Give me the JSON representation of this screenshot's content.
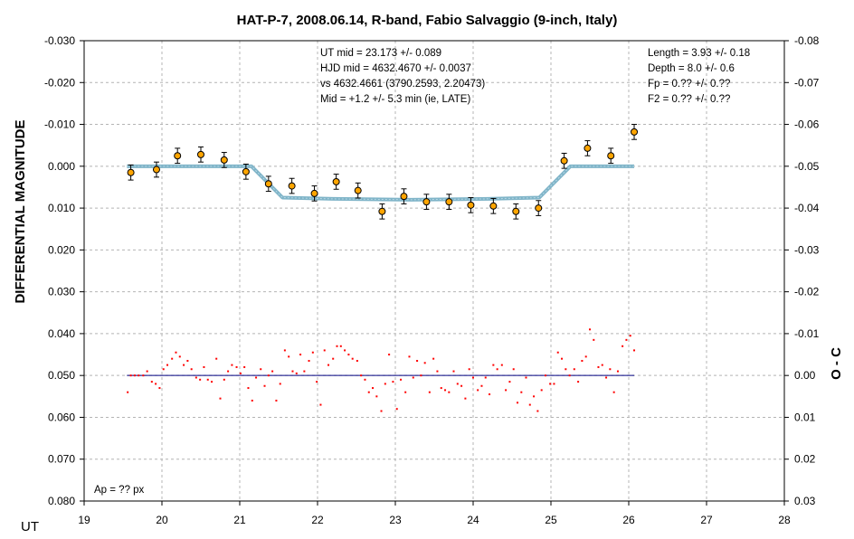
{
  "chart_data": {
    "type": "scatter",
    "title": "HAT-P-7, 2008.06.14, R-band, Fabio Salvaggio (9-inch, Italy)",
    "xlabel": "UT",
    "ylabel": "DIFFERENTIAL MAGNITUDE",
    "y2label": "O - C",
    "xlim": [
      19,
      28
    ],
    "ylim": [
      0.08,
      -0.03
    ],
    "y2lim": [
      0.03,
      -0.08
    ],
    "y_inverted": true,
    "grid": true,
    "x_ticks": [
      "19",
      "20",
      "21",
      "22",
      "23",
      "24",
      "25",
      "26",
      "27",
      "28"
    ],
    "y_ticks": [
      "-0.030",
      "-0.020",
      "-0.010",
      "0.000",
      "0.010",
      "0.020",
      "0.030",
      "0.040",
      "0.050",
      "0.060",
      "0.070",
      "0.080"
    ],
    "y2_ticks": [
      "-0.08",
      "-0.07",
      "-0.06",
      "-0.05",
      "-0.04",
      "-0.03",
      "-0.02",
      "-0.01",
      "0.00",
      "0.01",
      "0.02",
      "0.03"
    ],
    "annotations_center": [
      "UT mid = 23.173 +/- 0.089",
      "HJD mid = 4632.4670 +/- 0.0037",
      "vs 4632.4661  (3790.2593, 2.20473)",
      "Mid = +1.2 +/- 5.3 min (ie, LATE)"
    ],
    "annotations_right": [
      "Length = 3.93 +/- 0.18",
      "Depth = 8.0 +/- 0.6",
      "Fp = 0.?? +/- 0.??",
      "F2 = 0.?? +/- 0.??"
    ],
    "annotation_ap": "Ap = ?? px",
    "series": [
      {
        "type": "binned-points-with-errorbars",
        "color": "#ffa500",
        "x": [
          19.6,
          19.93,
          20.2,
          20.5,
          20.8,
          21.08,
          21.37,
          21.67,
          21.96,
          22.24,
          22.52,
          22.83,
          23.11,
          23.4,
          23.69,
          23.97,
          24.26,
          24.55,
          24.84,
          25.17,
          25.47,
          25.77,
          26.07
        ],
        "y": [
          0.0015,
          0.0008,
          -0.0025,
          -0.0028,
          -0.0015,
          0.0013,
          0.0042,
          0.0047,
          0.0065,
          0.0037,
          0.0058,
          0.0108,
          0.0072,
          0.0085,
          0.0085,
          0.0093,
          0.0095,
          0.0108,
          0.01,
          -0.0013,
          -0.0043,
          -0.0025,
          -0.0082
        ],
        "err": [
          0.0018,
          0.0018,
          0.0018,
          0.0018,
          0.0018,
          0.0018,
          0.0018,
          0.0018,
          0.0018,
          0.0018,
          0.0018,
          0.0018,
          0.0018,
          0.0018,
          0.0018,
          0.0018,
          0.0018,
          0.0018,
          0.0018,
          0.0018,
          0.0018,
          0.0018,
          0.0018
        ]
      },
      {
        "type": "model-line",
        "color": "#7fb4c8",
        "x": [
          19.55,
          21.15,
          21.55,
          22.2,
          23.2,
          24.2,
          24.85,
          25.25,
          26.07
        ],
        "y": [
          0.0,
          0.0,
          0.0075,
          0.0078,
          0.008,
          0.0078,
          0.0075,
          0.0,
          0.0
        ]
      },
      {
        "type": "residual-baseline",
        "color": "#000080",
        "axis": "right",
        "x": [
          19.55,
          26.07
        ],
        "y": [
          0.0,
          0.0
        ]
      },
      {
        "type": "residuals",
        "color": "#ff0000",
        "axis": "right",
        "x": [
          19.56,
          19.6,
          19.65,
          19.7,
          19.76,
          19.81,
          19.87,
          19.92,
          19.97,
          20.02,
          20.07,
          20.13,
          20.18,
          20.23,
          20.28,
          20.33,
          20.38,
          20.44,
          20.49,
          20.54,
          20.59,
          20.64,
          20.7,
          20.75,
          20.8,
          20.85,
          20.9,
          20.96,
          21.01,
          21.06,
          21.11,
          21.16,
          21.21,
          21.27,
          21.32,
          21.37,
          21.42,
          21.47,
          21.52,
          21.58,
          21.63,
          21.68,
          21.73,
          21.78,
          21.83,
          21.89,
          21.94,
          21.99,
          22.04,
          22.09,
          22.14,
          22.2,
          22.25,
          22.3,
          22.35,
          22.4,
          22.45,
          22.51,
          22.56,
          22.61,
          22.66,
          22.71,
          22.76,
          22.82,
          22.87,
          22.92,
          22.97,
          23.02,
          23.07,
          23.13,
          23.18,
          23.23,
          23.28,
          23.33,
          23.38,
          23.44,
          23.49,
          23.54,
          23.59,
          23.64,
          23.69,
          23.75,
          23.8,
          23.85,
          23.9,
          23.95,
          24.0,
          24.06,
          24.11,
          24.16,
          24.21,
          24.26,
          24.31,
          24.37,
          24.42,
          24.47,
          24.52,
          24.57,
          24.62,
          24.68,
          24.73,
          24.78,
          24.83,
          24.88,
          24.93,
          24.99,
          25.04,
          25.09,
          25.14,
          25.19,
          25.24,
          25.3,
          25.35,
          25.4,
          25.45,
          25.5,
          25.55,
          25.61,
          25.66,
          25.71,
          25.76,
          25.81,
          25.86,
          25.92,
          25.97,
          26.02,
          26.07
        ],
        "y": [
          0.004,
          0.0,
          0.0,
          0.0,
          0.0,
          -0.001,
          0.0015,
          0.002,
          0.003,
          -0.0015,
          -0.0025,
          -0.004,
          -0.0055,
          -0.0045,
          -0.0025,
          -0.0035,
          -0.0015,
          0.0005,
          0.001,
          -0.002,
          0.001,
          0.0015,
          -0.004,
          0.0055,
          0.001,
          -0.001,
          -0.0025,
          -0.002,
          -0.0005,
          -0.002,
          0.003,
          0.006,
          0.0005,
          -0.0015,
          0.0025,
          0.0,
          -0.001,
          0.006,
          0.002,
          -0.006,
          -0.0045,
          -0.001,
          -0.0005,
          -0.005,
          -0.001,
          -0.0035,
          -0.0055,
          0.0015,
          0.007,
          -0.006,
          -0.0025,
          -0.004,
          -0.007,
          -0.007,
          -0.006,
          -0.005,
          -0.004,
          -0.0035,
          0.0,
          0.001,
          0.004,
          0.003,
          0.005,
          0.0085,
          0.002,
          -0.005,
          0.0015,
          0.008,
          0.001,
          0.004,
          -0.0045,
          0.0005,
          -0.0035,
          0.0,
          -0.003,
          0.004,
          -0.004,
          -0.001,
          0.003,
          0.0035,
          0.004,
          -0.001,
          0.002,
          0.0025,
          0.0055,
          -0.0015,
          0.0005,
          0.0035,
          0.0025,
          0.0005,
          0.0045,
          -0.0025,
          -0.0015,
          -0.0025,
          0.0035,
          0.0015,
          -0.0015,
          0.0065,
          0.004,
          0.0005,
          0.007,
          0.005,
          0.0085,
          0.0035,
          0.0,
          0.002,
          0.002,
          -0.0055,
          -0.004,
          -0.0015,
          0.0,
          -0.0015,
          0.0015,
          -0.0035,
          -0.0045,
          -0.011,
          -0.0085,
          -0.002,
          -0.0025,
          0.0005,
          -0.0015,
          0.004,
          -0.001,
          -0.007,
          -0.0085,
          -0.0095,
          -0.006
        ]
      }
    ]
  }
}
